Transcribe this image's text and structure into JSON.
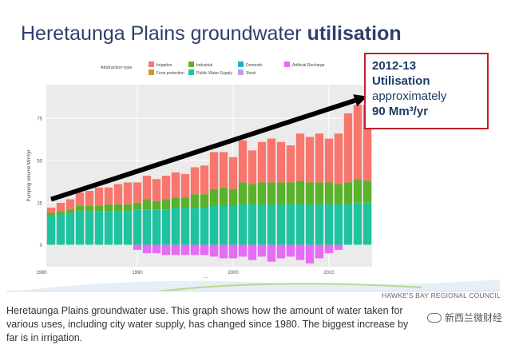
{
  "slide": {
    "title_plain": "Heretaunga Plains groundwater ",
    "title_bold": "utilisation"
  },
  "callout": {
    "line1": "2012-13",
    "line2": "Utilisation",
    "line3": "approximately",
    "line4": "90 Mm³/yr"
  },
  "credit": "HAWKE'S BAY REGIONAL COUNCIL",
  "caption": "Heretaunga Plains groundwater use. This graph shows how the amount of water taken for various uses, including city water supply, has changed since 1980. The biggest increase by far is in irrigation.",
  "watermark": "新西兰微财经",
  "colors": {
    "Irrigation": "#f8766d",
    "Industrial": "#5ab22a",
    "Domestic": "#1fb0c8",
    "Artificial Recharge": "#e76bf3",
    "Frost protection": "#c99a26",
    "Public Water Supply": "#1fc3a0",
    "Stock": "#b79fef",
    "arrow": "#000000",
    "callout_border": "#c0202a",
    "title": "#2e3e6e"
  },
  "chart_data": {
    "type": "bar",
    "stacked": true,
    "xlabel": "Year",
    "ylabel": "Pumping volume Mm³/yr",
    "ylim": [
      -13,
      95
    ],
    "yticks": [
      0,
      25,
      50,
      75
    ],
    "xticks": [
      1980,
      1990,
      2000,
      2010
    ],
    "grid": true,
    "legend_title": "Abstraction type",
    "legend_items": [
      "Irrigation",
      "Industrial",
      "Domestic",
      "Artificial Recharge",
      "Frost protection",
      "Public Water Supply",
      "Stock"
    ],
    "legend_position": "top",
    "years": [
      1981,
      1982,
      1983,
      1984,
      1985,
      1986,
      1987,
      1988,
      1989,
      1990,
      1991,
      1992,
      1993,
      1994,
      1995,
      1996,
      1997,
      1998,
      1999,
      2000,
      2001,
      2002,
      2003,
      2004,
      2005,
      2006,
      2007,
      2008,
      2009,
      2010,
      2011,
      2012,
      2013,
      2014
    ],
    "series": [
      {
        "name": "Public Water Supply",
        "values": [
          17,
          18,
          19,
          20,
          20,
          20,
          20,
          20,
          20,
          21,
          21,
          21,
          21,
          22,
          22,
          22,
          22,
          23,
          23,
          23,
          24,
          24,
          24,
          24,
          24,
          24,
          24,
          24,
          24,
          24,
          24,
          24,
          25,
          25
        ]
      },
      {
        "name": "Industrial",
        "values": [
          2,
          2,
          2,
          3,
          3,
          3,
          4,
          4,
          4,
          4,
          6,
          5,
          6,
          6,
          6,
          8,
          8,
          10,
          11,
          10,
          13,
          12,
          13,
          13,
          13,
          13,
          14,
          13,
          13,
          13,
          12,
          13,
          14,
          13
        ]
      },
      {
        "name": "Irrigation",
        "values": [
          3,
          5,
          6,
          8,
          9,
          11,
          10,
          12,
          13,
          12,
          14,
          13,
          14,
          15,
          14,
          16,
          17,
          22,
          21,
          19,
          25,
          20,
          24,
          26,
          24,
          22,
          28,
          27,
          29,
          26,
          30,
          41,
          44,
          45
        ]
      },
      {
        "name": "Artificial Recharge",
        "values": [
          0,
          0,
          0,
          0,
          0,
          0,
          0,
          0,
          0,
          -3,
          -5,
          -5,
          -6,
          -6,
          -6,
          -6,
          -6,
          -7,
          -8,
          -8,
          -7,
          -9,
          -7,
          -10,
          -8,
          -7,
          -9,
          -11,
          -8,
          -5,
          -3,
          0,
          0,
          0
        ]
      }
    ],
    "trend_arrow": {
      "from": [
        1981,
        27
      ],
      "to": [
        2014,
        88
      ]
    }
  }
}
